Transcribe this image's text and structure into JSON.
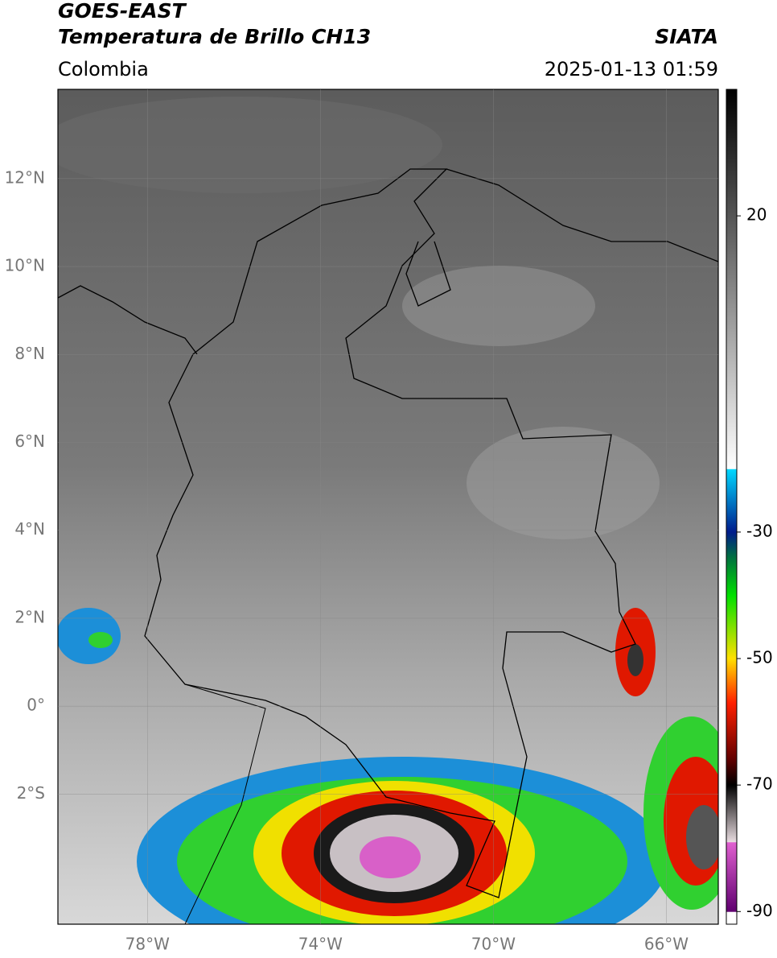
{
  "header": {
    "title": "GOES-EAST",
    "subtitle": "Temperatura de Brillo CH13",
    "region": "Colombia",
    "source": "SIATA",
    "datetime": "2025-01-13 01:59"
  },
  "map": {
    "xlim": [
      -80.07,
      -64.8
    ],
    "ylim": [
      -4.96,
      14.03
    ],
    "grid": true,
    "xticks": [
      {
        "value": -78,
        "label": "78°W"
      },
      {
        "value": -74,
        "label": "74°W"
      },
      {
        "value": -70,
        "label": "70°W"
      },
      {
        "value": -66,
        "label": "66°W"
      }
    ],
    "yticks": [
      {
        "value": 12,
        "label": "12°N"
      },
      {
        "value": 10,
        "label": "10°N"
      },
      {
        "value": 8,
        "label": "8°N"
      },
      {
        "value": 6,
        "label": "6°N"
      },
      {
        "value": 4,
        "label": "4°N"
      },
      {
        "value": 2,
        "label": "2°N"
      },
      {
        "value": 0,
        "label": "0°"
      },
      {
        "value": -2,
        "label": "2°S"
      }
    ]
  },
  "colorbar": {
    "lim": [
      -92,
      40
    ],
    "ticks": [
      20,
      -30,
      -50,
      -70,
      -90
    ],
    "stops": [
      {
        "value": 40,
        "color": "#000000"
      },
      {
        "value": -20,
        "color": "#ffffff"
      },
      {
        "value": -20.1,
        "color": "#00d8ff"
      },
      {
        "value": -30,
        "color": "#001c8c"
      },
      {
        "value": -34,
        "color": "#007040"
      },
      {
        "value": -40,
        "color": "#00e000"
      },
      {
        "value": -50,
        "color": "#ffe000"
      },
      {
        "value": -57,
        "color": "#ff2000"
      },
      {
        "value": -66,
        "color": "#600000"
      },
      {
        "value": -70,
        "color": "#000000"
      },
      {
        "value": -79,
        "color": "#e8dce0"
      },
      {
        "value": -79.1,
        "color": "#e060d0"
      },
      {
        "value": -90,
        "color": "#600070"
      },
      {
        "value": -90.1,
        "color": "#ffffff"
      }
    ]
  }
}
